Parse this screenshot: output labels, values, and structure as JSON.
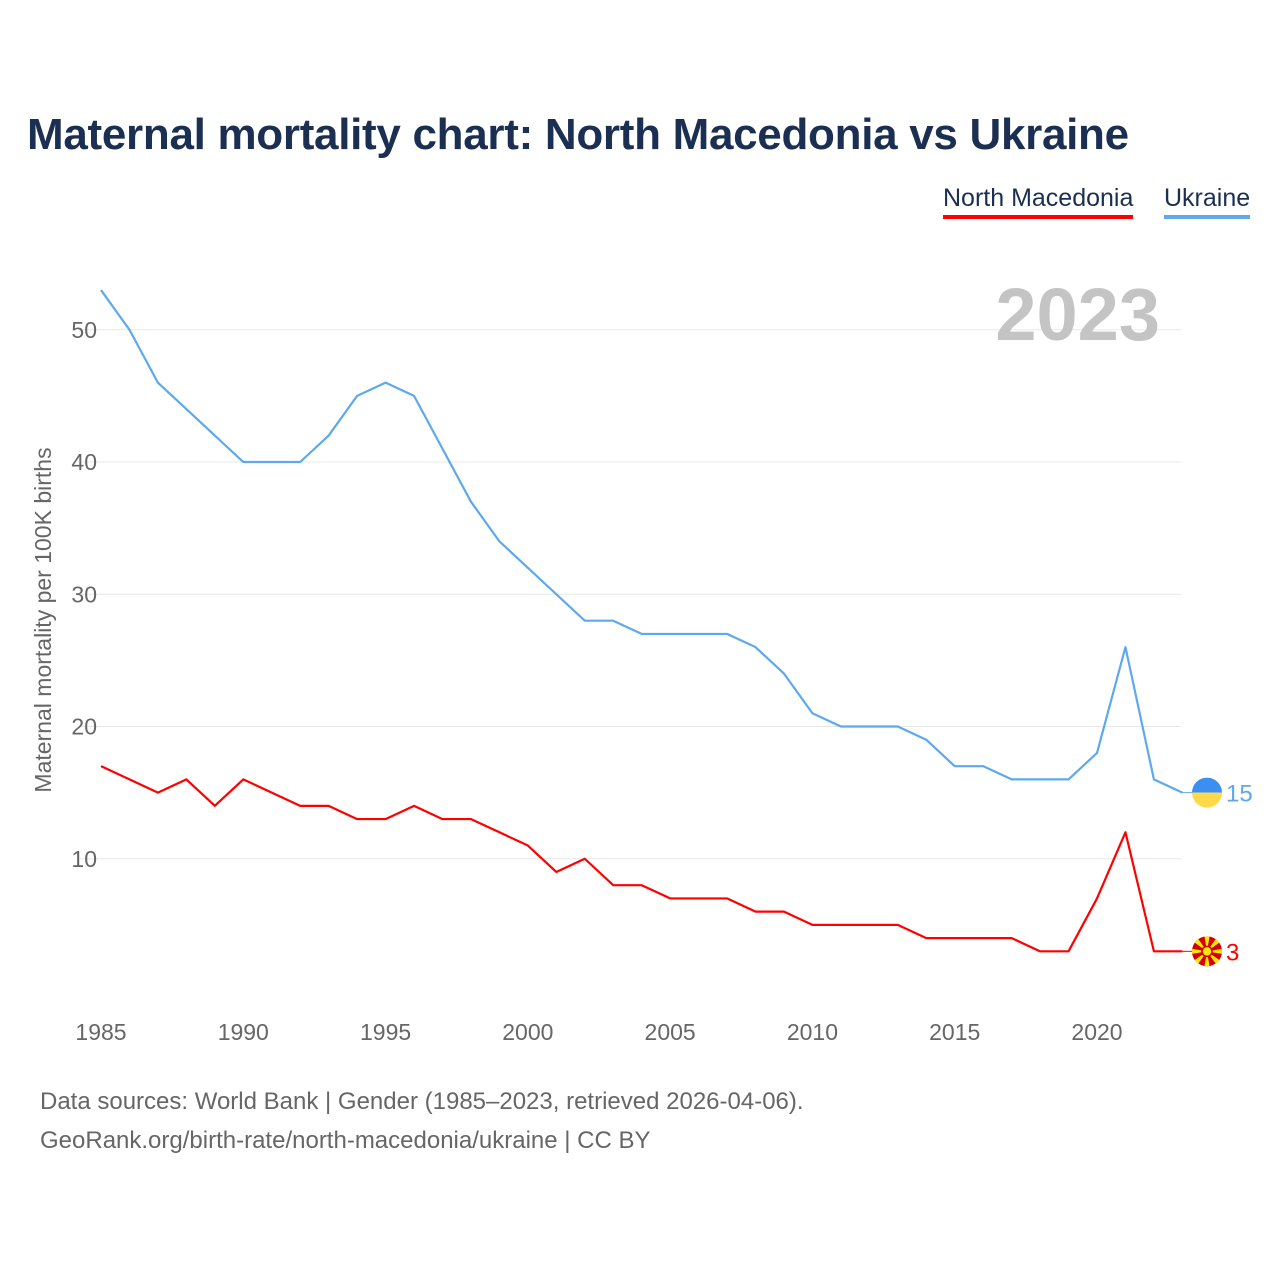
{
  "title": "Maternal mortality chart: North Macedonia vs Ukraine",
  "footer": {
    "line1": "Data sources: World Bank | Gender (1985–2023, retrieved 2026-04-06).",
    "line2": "GeoRank.org/birth-rate/north-macedonia/ukraine | CC BY"
  },
  "chart_data": {
    "type": "line",
    "title": "Maternal mortality chart: North Macedonia vs Ukraine",
    "year_label": "2023",
    "ylabel": "Maternal mortality per 100K births",
    "xlabel": "",
    "xlim": [
      1985,
      2023
    ],
    "ylim": [
      0,
      55
    ],
    "xticks": [
      1985,
      1990,
      1995,
      2000,
      2005,
      2010,
      2015,
      2020
    ],
    "yticks": [
      10,
      20,
      30,
      40,
      50
    ],
    "grid": true,
    "legend_position": "top-right",
    "x": [
      1985,
      1986,
      1987,
      1988,
      1989,
      1990,
      1991,
      1992,
      1993,
      1994,
      1995,
      1996,
      1997,
      1998,
      1999,
      2000,
      2001,
      2002,
      2003,
      2004,
      2005,
      2006,
      2007,
      2008,
      2009,
      2010,
      2011,
      2012,
      2013,
      2014,
      2015,
      2016,
      2017,
      2018,
      2019,
      2020,
      2021,
      2022,
      2023
    ],
    "series": [
      {
        "name": "North Macedonia",
        "color": "#ff0000",
        "end_label": "3",
        "values": [
          17,
          16,
          15,
          16,
          14,
          16,
          15,
          14,
          14,
          13,
          13,
          14,
          13,
          13,
          12,
          11,
          9,
          10,
          8,
          8,
          7,
          7,
          7,
          6,
          6,
          5,
          5,
          5,
          5,
          4,
          4,
          4,
          4,
          3,
          3,
          7,
          12,
          3,
          3
        ]
      },
      {
        "name": "Ukraine",
        "color": "#5ea8ee",
        "end_label": "15",
        "values": [
          53,
          50,
          46,
          44,
          42,
          40,
          40,
          40,
          42,
          45,
          46,
          45,
          41,
          37,
          34,
          32,
          30,
          28,
          28,
          27,
          27,
          27,
          27,
          26,
          24,
          21,
          20,
          20,
          20,
          19,
          17,
          17,
          16,
          16,
          16,
          18,
          26,
          16,
          15
        ]
      }
    ]
  }
}
